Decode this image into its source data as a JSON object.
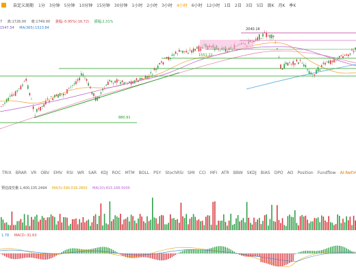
{
  "toolbar": {
    "custom_period": "自定义周期",
    "timeframes": [
      "1分",
      "3分钟",
      "5分钟",
      "10分钟",
      "15分钟",
      "30分钟",
      "1小时",
      "2小时",
      "3小时",
      "4小时",
      "6小时",
      "12小时",
      "1日",
      "2日",
      "3日",
      "5日",
      "周K",
      "月K",
      "季K"
    ],
    "active_timeframe": "4小时"
  },
  "ohlc": {
    "open": "7",
    "high": "高:1726.00",
    "low": "收:1749.00",
    "change": "涨幅:-0.95%(-16.72)",
    "amplitude": "振幅:2.31%"
  },
  "ma_info": {
    "ma1": "1547.54",
    "ma2": "MA(365):1523.84"
  },
  "levels": {
    "high_label": "2040.16",
    "mid_label": "1551.22",
    "low_label": "880.91"
  },
  "indicators": {
    "tabs": [
      "TRIX",
      "BRAR",
      "VR",
      "OBV",
      "EMV",
      "RSI",
      "WR",
      "SAR",
      "KDJ",
      "ROC",
      "MTM",
      "BOLL",
      "PSY",
      "StochRSI",
      "SMI",
      "CCI",
      "MFI",
      "ATR",
      "BBW",
      "SKDJ",
      "BIAS",
      "DPO",
      "AO",
      "Position",
      "Fundflow",
      "AI-NetVOL",
      "LSUR",
      "BASIS",
      "TVolume",
      "FT"
    ],
    "selected": "AI-NetVOL"
  },
  "volume": {
    "label": "预估成交量:1,400,135.2494",
    "ma5": "MA(5):590,018.2800",
    "ma10": "MA(10):615,166.5000"
  },
  "macd": {
    "dif": "1.78",
    "macd": "MACD:-31.63"
  },
  "colors": {
    "up": "#2e9e47",
    "down": "#d9363e",
    "accent": "#f59b00",
    "level_line": "#1e9e1e",
    "resistance": "#c23393",
    "box_fill": "#f5b3d8"
  },
  "chart_data": {
    "type": "candlestick",
    "levels": [
      2040.16,
      1551.22,
      880.91
    ],
    "volume_ma": {
      "ma5": 590018.28,
      "ma10": 615166.5
    },
    "macd": {
      "dif": 1.78,
      "macd": -31.63
    }
  }
}
